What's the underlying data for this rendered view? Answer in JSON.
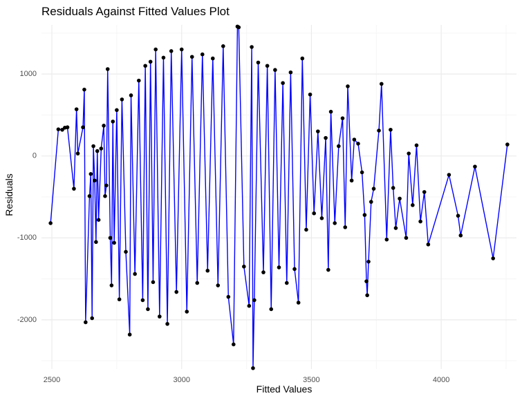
{
  "chart_data": {
    "type": "scatter",
    "title": "Residuals Against Fitted Values Plot",
    "xlabel": "Fitted Values",
    "ylabel": "Residuals",
    "xlim": [
      2460,
      4290
    ],
    "ylim": [
      -2600,
      1600
    ],
    "x_ticks": [
      2500,
      3000,
      3500,
      4000
    ],
    "y_ticks": [
      1000,
      0,
      -1000,
      -2000
    ],
    "tick_labels": {
      "x": [
        "2500",
        "3000",
        "3500",
        "4000"
      ],
      "y": [
        "1000",
        "0",
        "-1000",
        "-2000"
      ]
    },
    "grid": true,
    "legend": "none",
    "colors": {
      "line": "#0000ff",
      "point": "#000000",
      "grid_major": "#ebebeb",
      "grid_minor": "#f5f5f5"
    },
    "point_style": "filled-dot",
    "series": [
      {
        "values": [
          [
            2495,
            -820
          ],
          [
            2525,
            325
          ],
          [
            2540,
            320
          ],
          [
            2550,
            345
          ],
          [
            2560,
            350
          ],
          [
            2585,
            -400
          ],
          [
            2595,
            570
          ],
          [
            2600,
            30
          ],
          [
            2620,
            350
          ],
          [
            2625,
            810
          ],
          [
            2630,
            -2030
          ],
          [
            2645,
            -490
          ],
          [
            2650,
            -220
          ],
          [
            2655,
            -1980
          ],
          [
            2660,
            120
          ],
          [
            2665,
            -300
          ],
          [
            2670,
            -1050
          ],
          [
            2675,
            60
          ],
          [
            2680,
            -780
          ],
          [
            2690,
            90
          ],
          [
            2700,
            370
          ],
          [
            2705,
            -490
          ],
          [
            2710,
            -360
          ],
          [
            2715,
            1060
          ],
          [
            2725,
            -1000
          ],
          [
            2730,
            -1580
          ],
          [
            2735,
            420
          ],
          [
            2740,
            -1060
          ],
          [
            2750,
            560
          ],
          [
            2760,
            -1750
          ],
          [
            2770,
            690
          ],
          [
            2785,
            -1170
          ],
          [
            2800,
            -2180
          ],
          [
            2805,
            740
          ],
          [
            2820,
            -1440
          ],
          [
            2835,
            920
          ],
          [
            2850,
            -1760
          ],
          [
            2860,
            1100
          ],
          [
            2870,
            -1870
          ],
          [
            2880,
            1150
          ],
          [
            2890,
            -1540
          ],
          [
            2900,
            1300
          ],
          [
            2915,
            -1960
          ],
          [
            2930,
            1200
          ],
          [
            2945,
            -2050
          ],
          [
            2960,
            1280
          ],
          [
            2980,
            -1660
          ],
          [
            3000,
            1300
          ],
          [
            3020,
            -1900
          ],
          [
            3040,
            1210
          ],
          [
            3060,
            -1550
          ],
          [
            3080,
            1240
          ],
          [
            3100,
            -1400
          ],
          [
            3120,
            1190
          ],
          [
            3140,
            -1580
          ],
          [
            3160,
            1340
          ],
          [
            3180,
            -1720
          ],
          [
            3200,
            -2300
          ],
          [
            3215,
            1580
          ],
          [
            3220,
            1570
          ],
          [
            3240,
            -1350
          ],
          [
            3260,
            -1830
          ],
          [
            3270,
            1330
          ],
          [
            3275,
            -2590
          ],
          [
            3280,
            -1760
          ],
          [
            3295,
            1140
          ],
          [
            3315,
            -1420
          ],
          [
            3330,
            1100
          ],
          [
            3345,
            -1870
          ],
          [
            3360,
            1050
          ],
          [
            3375,
            -1360
          ],
          [
            3390,
            890
          ],
          [
            3405,
            -1550
          ],
          [
            3420,
            1020
          ],
          [
            3435,
            -1380
          ],
          [
            3450,
            -1790
          ],
          [
            3465,
            1190
          ],
          [
            3480,
            -900
          ],
          [
            3495,
            750
          ],
          [
            3510,
            -700
          ],
          [
            3525,
            300
          ],
          [
            3540,
            -760
          ],
          [
            3555,
            220
          ],
          [
            3565,
            -1390
          ],
          [
            3575,
            540
          ],
          [
            3590,
            -820
          ],
          [
            3605,
            120
          ],
          [
            3620,
            460
          ],
          [
            3630,
            -870
          ],
          [
            3640,
            850
          ],
          [
            3655,
            -300
          ],
          [
            3665,
            200
          ],
          [
            3680,
            150
          ],
          [
            3695,
            -200
          ],
          [
            3705,
            -720
          ],
          [
            3712,
            -1530
          ],
          [
            3715,
            -1700
          ],
          [
            3720,
            -1290
          ],
          [
            3730,
            -560
          ],
          [
            3740,
            -400
          ],
          [
            3760,
            310
          ],
          [
            3770,
            880
          ],
          [
            3790,
            -1020
          ],
          [
            3805,
            320
          ],
          [
            3815,
            -390
          ],
          [
            3825,
            -880
          ],
          [
            3840,
            -520
          ],
          [
            3865,
            -1000
          ],
          [
            3875,
            30
          ],
          [
            3890,
            -600
          ],
          [
            3905,
            130
          ],
          [
            3920,
            -800
          ],
          [
            3935,
            -440
          ],
          [
            3950,
            -1080
          ],
          [
            4030,
            -230
          ],
          [
            4065,
            -730
          ],
          [
            4075,
            -970
          ],
          [
            4130,
            -130
          ],
          [
            4200,
            -1250
          ],
          [
            4255,
            140
          ]
        ]
      }
    ]
  }
}
